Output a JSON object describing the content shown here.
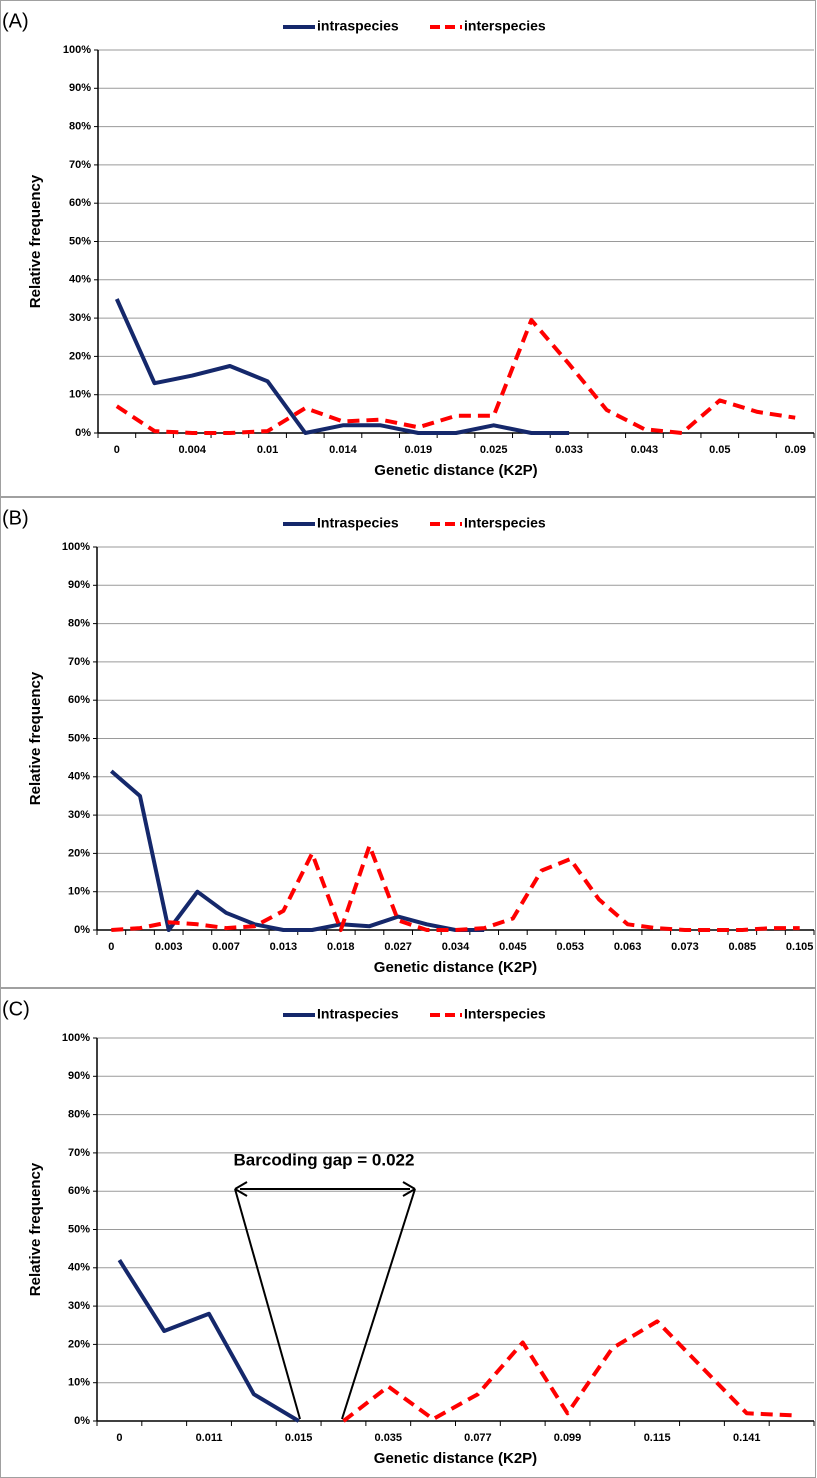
{
  "chart_data": [
    {
      "type": "line",
      "panel_label": "(A)",
      "xlabel": "Genetic distance (K2P)",
      "ylabel": "Relative frequency",
      "categories": [
        "0",
        null,
        "0.004",
        null,
        "0.01",
        null,
        "0.014",
        null,
        "0.019",
        null,
        "0.025",
        null,
        "0.033",
        null,
        "0.043",
        null,
        "0.05",
        null,
        "0.09"
      ],
      "series": [
        {
          "name": "intraspecies",
          "color": "#15286b",
          "linestyle": "solid",
          "values": [
            35,
            13,
            15,
            17.5,
            13.5,
            0,
            2,
            2,
            0,
            0,
            2,
            0,
            0,
            null,
            null,
            null,
            null,
            null,
            null
          ]
        },
        {
          "name": "interspecies",
          "color": "#ff0000",
          "linestyle": "dashed",
          "values": [
            7,
            0.5,
            0,
            0,
            0.5,
            6.5,
            3,
            3.5,
            1.5,
            4.5,
            4.5,
            29.5,
            18,
            6,
            1,
            0,
            8.5,
            5.5,
            4
          ]
        }
      ],
      "ylim": [
        0,
        100
      ],
      "yticks": [
        {
          "value": 0,
          "label": "0%"
        },
        {
          "value": 10,
          "label": "10%"
        },
        {
          "value": 20,
          "label": "20%"
        },
        {
          "value": 30,
          "label": "30%"
        },
        {
          "value": 40,
          "label": "40%"
        },
        {
          "value": 50,
          "label": "50%"
        },
        {
          "value": 60,
          "label": "60%"
        },
        {
          "value": 70,
          "label": "70%"
        },
        {
          "value": 80,
          "label": "80%"
        },
        {
          "value": 90,
          "label": "90%"
        },
        {
          "value": 100,
          "label": "100%"
        }
      ],
      "grid": true,
      "legend": "top"
    },
    {
      "type": "line",
      "panel_label": "(B)",
      "xlabel": "Genetic distance (K2P)",
      "ylabel": "Relative frequency",
      "categories": [
        "0",
        null,
        "0.003",
        null,
        "0.007",
        null,
        "0.013",
        null,
        "0.018",
        null,
        "0.027",
        null,
        "0.034",
        null,
        "0.045",
        null,
        "0.053",
        null,
        "0.063",
        null,
        "0.073",
        null,
        "0.085",
        null,
        "0.105"
      ],
      "series": [
        {
          "name": "Intraspecies",
          "color": "#15286b",
          "linestyle": "solid",
          "values": [
            41.5,
            35,
            0,
            10,
            4.5,
            1.5,
            0,
            0,
            1.5,
            1,
            3.5,
            1.5,
            0,
            0,
            null,
            null,
            null,
            null,
            null,
            null,
            null,
            null,
            null,
            null,
            null
          ]
        },
        {
          "name": "Interspecies",
          "color": "#ff0000",
          "linestyle": "dashed",
          "values": [
            0,
            0.5,
            2,
            1.5,
            0.5,
            1,
            5,
            20,
            0,
            22,
            2.5,
            0,
            0,
            0.5,
            3,
            15.5,
            18.5,
            8,
            1.5,
            0.5,
            0,
            0,
            0,
            0.5,
            0.5
          ]
        }
      ],
      "ylim": [
        0,
        100
      ],
      "yticks": [
        {
          "value": 0,
          "label": "0%"
        },
        {
          "value": 10,
          "label": "10%"
        },
        {
          "value": 20,
          "label": "20%"
        },
        {
          "value": 30,
          "label": "30%"
        },
        {
          "value": 40,
          "label": "40%"
        },
        {
          "value": 50,
          "label": "50%"
        },
        {
          "value": 60,
          "label": "60%"
        },
        {
          "value": 70,
          "label": "70%"
        },
        {
          "value": 80,
          "label": "80%"
        },
        {
          "value": 90,
          "label": "90%"
        },
        {
          "value": 100,
          "label": "100%"
        }
      ],
      "grid": true,
      "legend": "top"
    },
    {
      "type": "line",
      "panel_label": "(C)",
      "xlabel": "Genetic distance (K2P)",
      "ylabel": "Relative frequency",
      "categories": [
        "0",
        null,
        "0.011",
        null,
        "0.015",
        null,
        "0.035",
        null,
        "0.077",
        null,
        "0.099",
        null,
        "0.115",
        null,
        "0.141",
        null
      ],
      "series": [
        {
          "name": "Intraspecies",
          "color": "#15286b",
          "linestyle": "solid",
          "values": [
            42,
            23.5,
            28,
            7,
            0,
            null,
            null,
            null,
            null,
            null,
            null,
            null,
            null,
            null,
            null,
            null
          ]
        },
        {
          "name": "Interspecies",
          "color": "#ff0000",
          "linestyle": "dashed",
          "values": [
            null,
            null,
            null,
            null,
            null,
            0,
            9,
            0.5,
            7,
            20.5,
            2,
            19,
            26,
            14,
            2,
            1.5
          ]
        }
      ],
      "ylim": [
        0,
        100
      ],
      "yticks": [
        {
          "value": 0,
          "label": "0%"
        },
        {
          "value": 10,
          "label": "10%"
        },
        {
          "value": 20,
          "label": "20%"
        },
        {
          "value": 30,
          "label": "30%"
        },
        {
          "value": 40,
          "label": "40%"
        },
        {
          "value": 50,
          "label": "50%"
        },
        {
          "value": 60,
          "label": "60%"
        },
        {
          "value": 70,
          "label": "70%"
        },
        {
          "value": 80,
          "label": "80%"
        },
        {
          "value": 90,
          "label": "90%"
        },
        {
          "value": 100,
          "label": "100%"
        }
      ],
      "grid": true,
      "legend": "top",
      "annotation": "Barcoding gap = 0.022"
    }
  ]
}
